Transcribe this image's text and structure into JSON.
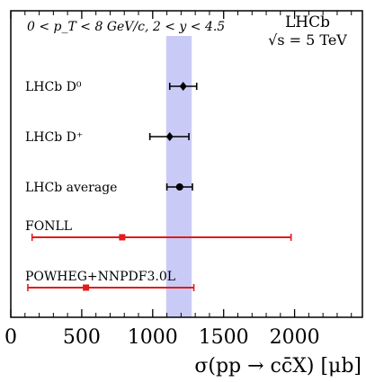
{
  "chart_data": {
    "type": "errorbar",
    "title": "",
    "kinematic_label": "0 < p_T < 8 GeV/c, 2 < y < 4.5",
    "experiment_label": "LHCb",
    "energy_label": "√s = 5 TeV",
    "xlabel": "σ(pp → cc̄X) [μb]",
    "xlim": [
      0,
      2450
    ],
    "xticks": [
      0,
      500,
      1000,
      1500,
      2000
    ],
    "xtick_labels": [
      "0",
      "500",
      "1000",
      "1500",
      "2000"
    ],
    "band": {
      "low": 1095,
      "high": 1275,
      "color": "#c6c8f6"
    },
    "points": [
      {
        "label": "LHCb D⁰",
        "value": 1215,
        "err_low": 95,
        "err_high": 95,
        "marker": "diamond",
        "color": "#000000"
      },
      {
        "label": "LHCb D⁺",
        "value": 1120,
        "err_low": 140,
        "err_high": 135,
        "marker": "diamond",
        "color": "#000000"
      },
      {
        "label": "LHCb average",
        "value": 1190,
        "err_low": 90,
        "err_high": 90,
        "marker": "circle",
        "color": "#000000"
      },
      {
        "label": "FONLL",
        "value": 785,
        "err_low": 635,
        "err_high": 1190,
        "marker": "square",
        "color": "#e41a1c"
      },
      {
        "label": "POWHEG+NNPDF3.0L",
        "value": 530,
        "err_low": 410,
        "err_high": 760,
        "marker": "square",
        "color": "#e41a1c"
      }
    ]
  }
}
